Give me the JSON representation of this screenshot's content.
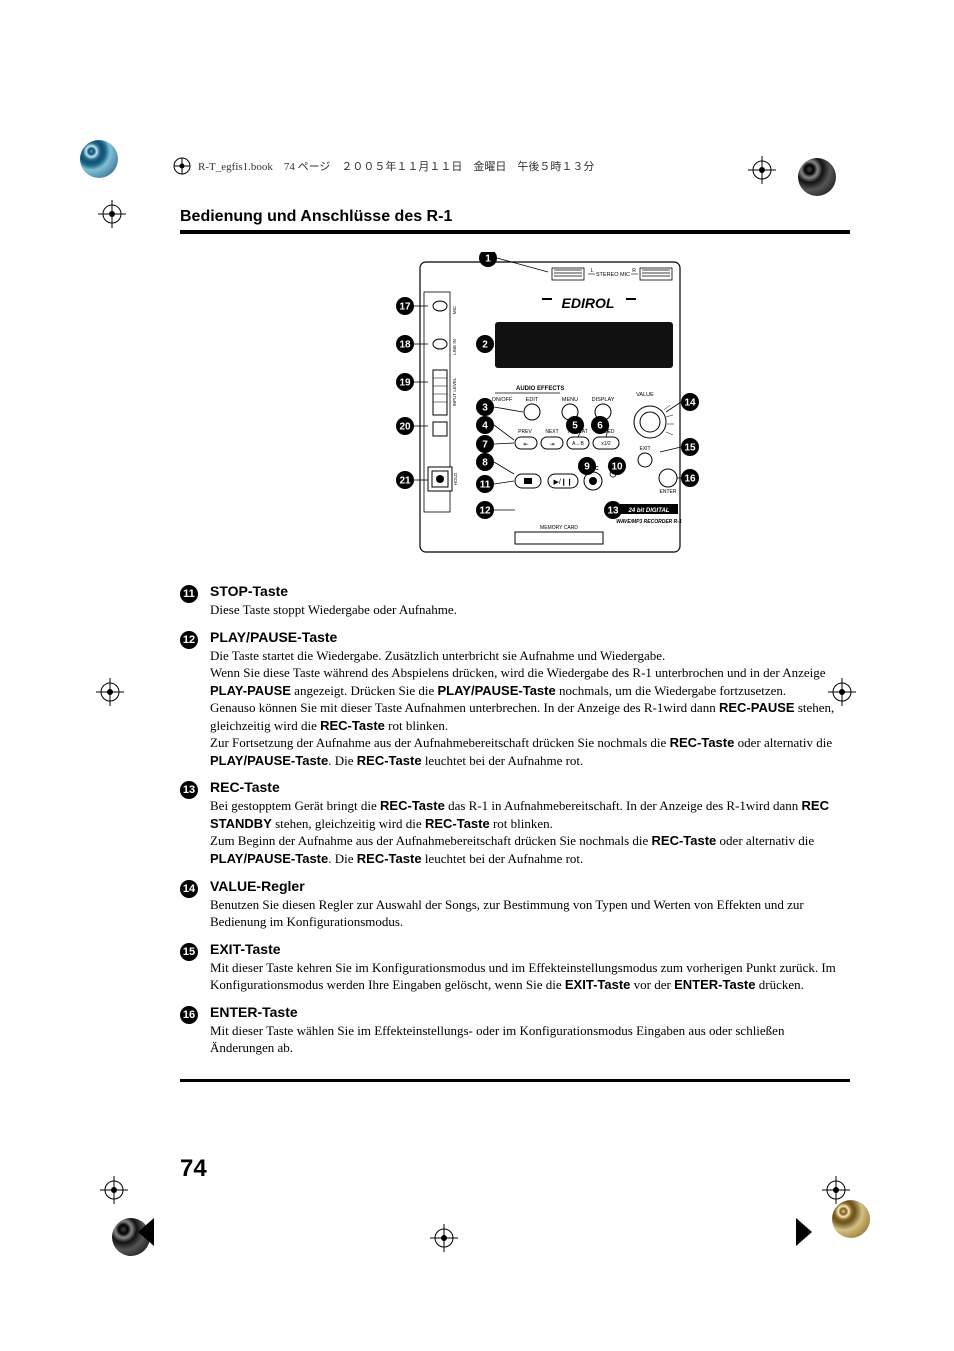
{
  "bookinfo": {
    "text": "R-T_egfis1.book　74 ページ　２００５年１１月１１日　金曜日　午後５時１３分"
  },
  "section_title": "Bedienung und Anschlüsse des R-1",
  "device": {
    "brand": "EDIROL",
    "badge_line1": "24 bit DIGITAL",
    "badge_line2": "WAVE/MP3 RECORDER R-1",
    "labels": {
      "stereo_mic": "STEREO MIC",
      "audio_effects": "AUDIO EFFECTS",
      "on_off": "ON/OFF",
      "edit": "EDIT",
      "menu": "MENU",
      "display": "DISPLAY",
      "value": "VALUE",
      "prev": "PREV",
      "next": "NEXT",
      "repeat": "REPEAT",
      "speed": "SPEED",
      "exit": "EXIT",
      "enter": "ENTER",
      "rec": "REC",
      "memory_card": "MEMORY CARD",
      "a_b": "A↔B",
      "x12": "x1/2"
    },
    "callouts_left": [
      "17",
      "18",
      "19",
      "20",
      "21"
    ],
    "callouts_mid": [
      "1",
      "2",
      "3",
      "4",
      "5",
      "6",
      "7",
      "8",
      "9",
      "10",
      "11",
      "12",
      "13"
    ],
    "callouts_right": [
      "14",
      "15",
      "16"
    ]
  },
  "items": [
    {
      "num": "11",
      "title": "STOP-Taste",
      "paragraphs": [
        "Diese Taste stoppt Wiedergabe oder Aufnahme."
      ]
    },
    {
      "num": "12",
      "title": "PLAY/PAUSE-Taste",
      "paragraphs": [
        "Die Taste startet die Wiedergabe. Zusätzlich unterbricht sie Aufnahme und Wiedergabe.",
        "Wenn Sie diese Taste während des Abspielens drücken, wird die Wiedergabe des R-1 unterbrochen und in der Anzeige <b>PLAY-PAUSE</b> angezeigt. Drücken Sie die <b>PLAY/PAUSE-Taste</b> nochmals, um die Wiedergabe fortzusetzen.",
        "Genauso können Sie mit dieser Taste Aufnahmen unterbrechen. In der Anzeige des R-1wird dann <b>REC-PAUSE</b> stehen, gleichzeitig wird die <b>REC-Taste</b> rot blinken.",
        "Zur Fortsetzung der Aufnahme aus der Aufnahmebereitschaft drücken Sie nochmals die <b>REC-Taste</b> oder alternativ die <b>PLAY/PAUSE-Taste</b>. Die <b>REC-Taste</b> leuchtet bei der Aufnahme rot."
      ]
    },
    {
      "num": "13",
      "title": "REC-Taste",
      "paragraphs": [
        "Bei gestopptem Gerät bringt die <b>REC-Taste</b> das R-1 in Aufnahmebereitschaft. In der Anzeige des R-1wird dann <b>REC STANDBY</b> stehen, gleichzeitig wird die <b>REC-Taste</b> rot blinken.",
        "Zum Beginn der Aufnahme aus der Aufnahmebereitschaft drücken Sie nochmals die <b>REC-Taste</b> oder alternativ die <b>PLAY/PAUSE-Taste</b>. Die <b>REC-Taste</b> leuchtet bei der Aufnahme rot."
      ]
    },
    {
      "num": "14",
      "title": "VALUE-Regler",
      "paragraphs": [
        "Benutzen Sie diesen Regler zur Auswahl der Songs, zur Bestimmung von Typen und Werten von Effekten und zur Bedienung im Konfigurationsmodus."
      ]
    },
    {
      "num": "15",
      "title": "EXIT-Taste",
      "paragraphs": [
        "Mit dieser Taste kehren Sie im Konfigurationsmodus und im Effekteinstellungsmodus zum vorherigen Punkt zurück. Im Konfigurationsmodus werden Ihre Eingaben gelöscht, wenn Sie die <b>EXIT-Taste</b> vor der <b>ENTER-Taste</b> drücken."
      ]
    },
    {
      "num": "16",
      "title": "ENTER-Taste",
      "paragraphs": [
        "Mit dieser Taste wählen Sie im Effekteinstellungs- oder im Konfigurationsmodus Eingaben aus oder schließen Änderungen ab."
      ]
    }
  ],
  "page_number": "74",
  "colors": {
    "text": "#000000",
    "rule": "#000000"
  }
}
